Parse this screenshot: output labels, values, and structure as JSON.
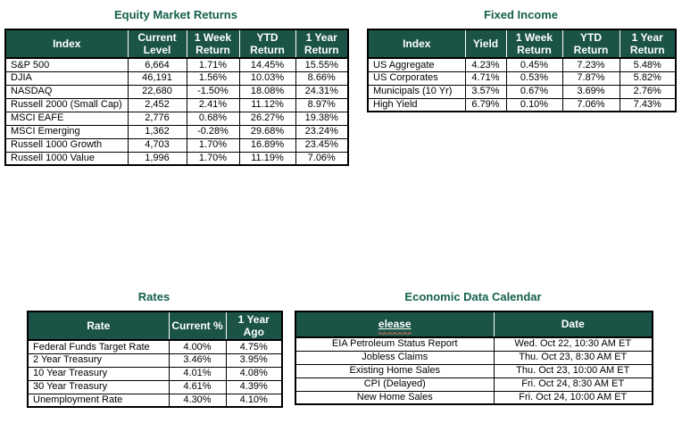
{
  "colors": {
    "header_bg": "#1B5447",
    "header_text": "#FFFFFF",
    "title_text": "#14604E",
    "body_text": "#000000",
    "border": "#000000",
    "squiggle_red": "#D9675C",
    "page_bg": "#FFFFFF"
  },
  "tables": {
    "equity": {
      "title": "Equity Market Returns",
      "headers": [
        "Index",
        "Current Level",
        "1 Week Return",
        "YTD Return",
        "1 Year Return"
      ],
      "rows": [
        [
          "S&P 500",
          "6,664",
          "1.71%",
          "14.45%",
          "15.55%"
        ],
        [
          "DJIA",
          "46,191",
          "1.56%",
          "10.03%",
          "8.66%"
        ],
        [
          "NASDAQ",
          "22,680",
          "-1.50%",
          "18.08%",
          "24.31%"
        ],
        [
          "Russell 2000 (Small Cap)",
          "2,452",
          "2.41%",
          "11.12%",
          "8.97%"
        ],
        [
          "MSCI EAFE",
          "2,776",
          "0.68%",
          "26.27%",
          "19.38%"
        ],
        [
          "MSCI Emerging",
          "1,362",
          "-0.28%",
          "29.68%",
          "23.24%"
        ],
        [
          "Russell 1000 Growth",
          "4,703",
          "1.70%",
          "16.89%",
          "23.45%"
        ],
        [
          "Russell 1000 Value",
          "1,996",
          "1.70%",
          "11.19%",
          "7.06%"
        ]
      ]
    },
    "fixed_income": {
      "title": "Fixed Income",
      "headers": [
        "Index",
        "Yield",
        "1 Week Return",
        "YTD Return",
        "1 Year Return"
      ],
      "rows": [
        [
          "US Aggregate",
          "4.23%",
          "0.45%",
          "7.23%",
          "5.48%"
        ],
        [
          "US Corporates",
          "4.71%",
          "0.53%",
          "7.87%",
          "5.82%"
        ],
        [
          "Municipals (10 Yr)",
          "3.57%",
          "0.67%",
          "3.69%",
          "2.76%"
        ],
        [
          "High Yield",
          "6.79%",
          "0.10%",
          "7.06%",
          "7.43%"
        ]
      ]
    },
    "rates": {
      "title": "Rates",
      "headers": [
        "Rate",
        "Current %",
        "1 Year Ago"
      ],
      "rows": [
        [
          "Federal Funds Target Rate",
          "4.00%",
          "4.75%"
        ],
        [
          "2 Year Treasury",
          "3.46%",
          "3.95%"
        ],
        [
          "10 Year Treasury",
          "4.01%",
          "4.08%"
        ],
        [
          "30 Year Treasury",
          "4.61%",
          "4.39%"
        ],
        [
          "Unemployment Rate",
          "4.30%",
          "4.10%"
        ]
      ]
    },
    "calendar": {
      "title": "Economic Data Calendar",
      "headers": [
        "elease",
        "Date"
      ],
      "misspelled_header_index": 0,
      "rows": [
        [
          "EIA Petroleum Status Report",
          "Wed. Oct 22, 10:30 AM ET"
        ],
        [
          "Jobless Claims",
          "Thu. Oct 23, 8:30 AM ET"
        ],
        [
          "Existing Home Sales",
          "Thu. Oct 23, 10:00 AM ET"
        ],
        [
          "CPI (Delayed)",
          "Fri. Oct 24, 8:30 AM ET"
        ],
        [
          "New Home Sales",
          "Fri. Oct 24, 10:00 AM ET"
        ]
      ]
    }
  }
}
